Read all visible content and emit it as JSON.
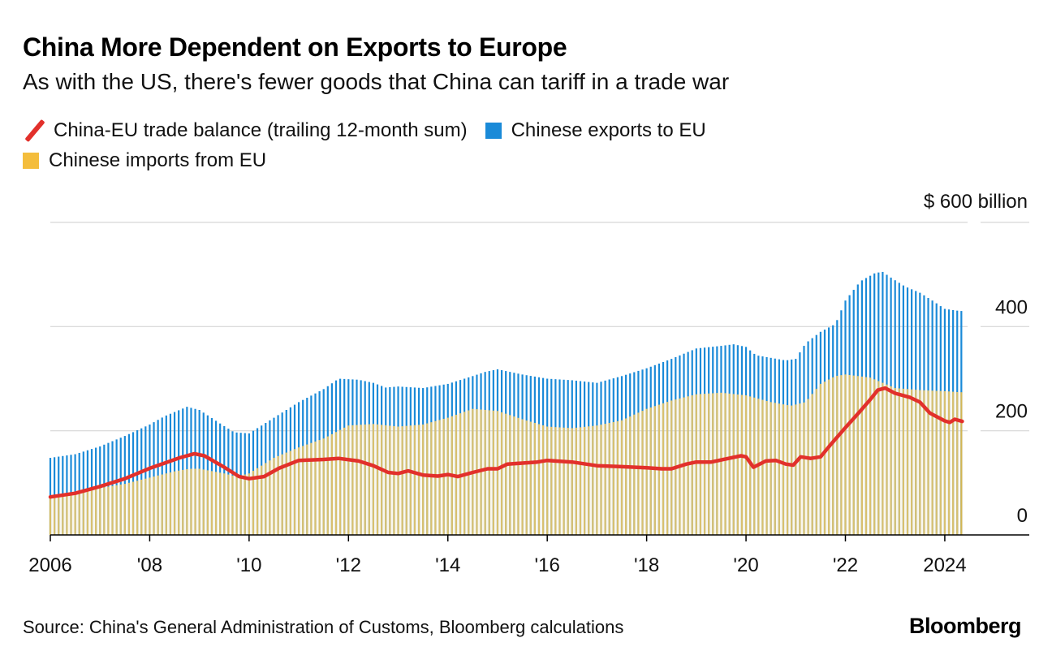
{
  "header": {
    "title": "China More Dependent on Exports to Europe",
    "subtitle": "As with the US, there's fewer goods that China can tariff in a trade war"
  },
  "legend": [
    {
      "label": "China-EU trade balance (trailing 12-month sum)",
      "color": "#e2302b",
      "icon": "line-slash-icon"
    },
    {
      "label": "Chinese exports to EU",
      "color": "#1a8ad8",
      "icon": "square-icon"
    },
    {
      "label": "Chinese imports from EU",
      "color": "#f4bd3c",
      "icon": "square-icon"
    }
  ],
  "footer": {
    "source": "Source: China's General Administration of Customs, Bloomberg calculations",
    "brand": "Bloomberg"
  },
  "chart_data": {
    "type": "bar",
    "ylim": [
      0,
      600
    ],
    "y_unit_label": "$ 600 billion",
    "y_ticks": [
      {
        "value": 0,
        "label": "0"
      },
      {
        "value": 200,
        "label": "200"
      },
      {
        "value": 400,
        "label": "400"
      },
      {
        "value": 600,
        "label": "$ 600 billion"
      }
    ],
    "x_range": [
      2006.0,
      2025.7
    ],
    "x_ticks": [
      {
        "value": 2006,
        "label": "2006"
      },
      {
        "value": 2008,
        "label": "'08"
      },
      {
        "value": 2010,
        "label": "'10"
      },
      {
        "value": 2012,
        "label": "'12"
      },
      {
        "value": 2014,
        "label": "'14"
      },
      {
        "value": 2016,
        "label": "'16"
      },
      {
        "value": 2018,
        "label": "'18"
      },
      {
        "value": 2020,
        "label": "'20"
      },
      {
        "value": 2022,
        "label": "'22"
      },
      {
        "value": 2024,
        "label": "2024"
      }
    ],
    "grid": true,
    "series": [
      {
        "name": "Chinese exports to EU",
        "type": "bar",
        "color": "#1a8ad8",
        "points": [
          [
            2006.0,
            148
          ],
          [
            2006.5,
            155
          ],
          [
            2007.0,
            170
          ],
          [
            2007.5,
            190
          ],
          [
            2008.0,
            212
          ],
          [
            2008.3,
            228
          ],
          [
            2008.75,
            246
          ],
          [
            2009.0,
            240
          ],
          [
            2009.4,
            215
          ],
          [
            2009.7,
            197
          ],
          [
            2010.0,
            195
          ],
          [
            2010.5,
            225
          ],
          [
            2011.0,
            255
          ],
          [
            2011.5,
            280
          ],
          [
            2011.8,
            300
          ],
          [
            2012.2,
            298
          ],
          [
            2012.5,
            292
          ],
          [
            2012.75,
            283
          ],
          [
            2013.0,
            285
          ],
          [
            2013.5,
            282
          ],
          [
            2014.0,
            290
          ],
          [
            2014.5,
            305
          ],
          [
            2014.75,
            313
          ],
          [
            2015.0,
            318
          ],
          [
            2015.5,
            308
          ],
          [
            2016.0,
            300
          ],
          [
            2016.5,
            297
          ],
          [
            2017.0,
            292
          ],
          [
            2017.5,
            305
          ],
          [
            2018.0,
            320
          ],
          [
            2018.5,
            338
          ],
          [
            2019.0,
            358
          ],
          [
            2019.5,
            363
          ],
          [
            2019.75,
            366
          ],
          [
            2020.0,
            361
          ],
          [
            2020.2,
            345
          ],
          [
            2020.5,
            340
          ],
          [
            2020.8,
            335
          ],
          [
            2021.0,
            338
          ],
          [
            2021.2,
            368
          ],
          [
            2021.5,
            390
          ],
          [
            2021.8,
            405
          ],
          [
            2022.0,
            450
          ],
          [
            2022.3,
            487
          ],
          [
            2022.6,
            503
          ],
          [
            2022.75,
            505
          ],
          [
            2022.9,
            495
          ],
          [
            2023.2,
            477
          ],
          [
            2023.5,
            465
          ],
          [
            2023.75,
            450
          ],
          [
            2024.0,
            434
          ],
          [
            2024.3,
            430
          ]
        ]
      },
      {
        "name": "Chinese imports from EU",
        "type": "bar",
        "color": "#f4bd3c",
        "points": [
          [
            2006.0,
            75
          ],
          [
            2006.5,
            80
          ],
          [
            2007.0,
            90
          ],
          [
            2007.5,
            98
          ],
          [
            2008.0,
            110
          ],
          [
            2008.5,
            122
          ],
          [
            2008.8,
            127
          ],
          [
            2009.0,
            127
          ],
          [
            2009.5,
            118
          ],
          [
            2009.75,
            112
          ],
          [
            2010.0,
            118
          ],
          [
            2010.5,
            148
          ],
          [
            2011.0,
            168
          ],
          [
            2011.5,
            185
          ],
          [
            2012.0,
            210
          ],
          [
            2012.5,
            213
          ],
          [
            2013.0,
            208
          ],
          [
            2013.5,
            212
          ],
          [
            2014.0,
            225
          ],
          [
            2014.5,
            242
          ],
          [
            2015.0,
            238
          ],
          [
            2015.5,
            222
          ],
          [
            2016.0,
            208
          ],
          [
            2016.5,
            205
          ],
          [
            2017.0,
            210
          ],
          [
            2017.5,
            220
          ],
          [
            2018.0,
            242
          ],
          [
            2018.5,
            258
          ],
          [
            2019.0,
            270
          ],
          [
            2019.5,
            273
          ],
          [
            2020.0,
            268
          ],
          [
            2020.5,
            255
          ],
          [
            2020.9,
            248
          ],
          [
            2021.2,
            255
          ],
          [
            2021.5,
            290
          ],
          [
            2021.8,
            305
          ],
          [
            2022.0,
            308
          ],
          [
            2022.5,
            302
          ],
          [
            2022.8,
            290
          ],
          [
            2023.0,
            282
          ],
          [
            2023.5,
            278
          ],
          [
            2024.0,
            276
          ],
          [
            2024.3,
            274
          ]
        ]
      },
      {
        "name": "China-EU trade balance (trailing 12-month sum)",
        "type": "line",
        "color": "#e2302b",
        "points": [
          [
            2006.0,
            73
          ],
          [
            2006.5,
            80
          ],
          [
            2007.0,
            93
          ],
          [
            2007.5,
            108
          ],
          [
            2008.0,
            128
          ],
          [
            2008.3,
            138
          ],
          [
            2008.6,
            148
          ],
          [
            2008.9,
            156
          ],
          [
            2009.1,
            152
          ],
          [
            2009.5,
            130
          ],
          [
            2009.8,
            112
          ],
          [
            2010.0,
            108
          ],
          [
            2010.3,
            112
          ],
          [
            2010.6,
            128
          ],
          [
            2011.0,
            143
          ],
          [
            2011.5,
            145
          ],
          [
            2011.8,
            147
          ],
          [
            2012.2,
            142
          ],
          [
            2012.5,
            133
          ],
          [
            2012.8,
            120
          ],
          [
            2013.0,
            118
          ],
          [
            2013.2,
            123
          ],
          [
            2013.5,
            115
          ],
          [
            2013.8,
            113
          ],
          [
            2014.0,
            116
          ],
          [
            2014.2,
            112
          ],
          [
            2014.5,
            120
          ],
          [
            2014.8,
            127
          ],
          [
            2015.0,
            127
          ],
          [
            2015.2,
            136
          ],
          [
            2015.5,
            138
          ],
          [
            2015.8,
            140
          ],
          [
            2016.0,
            143
          ],
          [
            2016.5,
            140
          ],
          [
            2017.0,
            133
          ],
          [
            2017.5,
            131
          ],
          [
            2018.0,
            129
          ],
          [
            2018.3,
            127
          ],
          [
            2018.5,
            127
          ],
          [
            2018.8,
            136
          ],
          [
            2019.0,
            140
          ],
          [
            2019.3,
            140
          ],
          [
            2019.6,
            146
          ],
          [
            2019.9,
            152
          ],
          [
            2020.0,
            150
          ],
          [
            2020.15,
            130
          ],
          [
            2020.4,
            142
          ],
          [
            2020.6,
            143
          ],
          [
            2020.8,
            136
          ],
          [
            2020.95,
            134
          ],
          [
            2021.1,
            150
          ],
          [
            2021.3,
            147
          ],
          [
            2021.5,
            150
          ],
          [
            2021.7,
            173
          ],
          [
            2022.0,
            206
          ],
          [
            2022.3,
            238
          ],
          [
            2022.5,
            260
          ],
          [
            2022.65,
            278
          ],
          [
            2022.8,
            282
          ],
          [
            2023.0,
            272
          ],
          [
            2023.3,
            264
          ],
          [
            2023.5,
            255
          ],
          [
            2023.7,
            234
          ],
          [
            2024.0,
            219
          ],
          [
            2024.1,
            216
          ],
          [
            2024.2,
            222
          ],
          [
            2024.35,
            218
          ]
        ]
      }
    ]
  }
}
